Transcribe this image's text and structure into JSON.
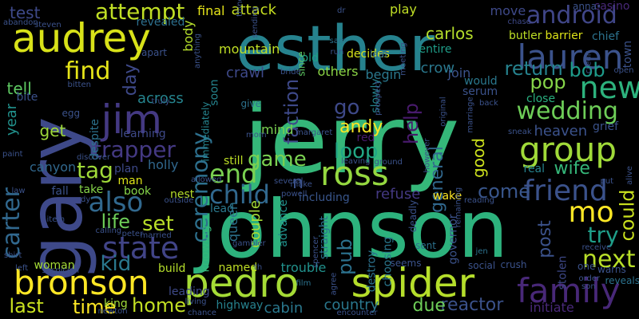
{
  "words": [
    {
      "text": "jerry",
      "color": "#35b779"
    },
    {
      "text": "johnson",
      "color": "#2db27d"
    },
    {
      "text": "esther",
      "color": "#26828e"
    },
    {
      "text": "gary",
      "color": "#3e4989"
    },
    {
      "text": "audrey",
      "color": "#d8e219"
    },
    {
      "text": "pedro",
      "color": "#a5db36"
    },
    {
      "text": "spider",
      "color": "#b5de2b"
    },
    {
      "text": "bronson",
      "color": "#fde725"
    },
    {
      "text": "group",
      "color": "#a0da39"
    },
    {
      "text": "lauren",
      "color": "#3b528b"
    },
    {
      "text": "family",
      "color": "#482878"
    },
    {
      "text": "android",
      "color": "#404688"
    },
    {
      "text": "ross",
      "color": "#95d840"
    },
    {
      "text": "friend",
      "color": "#3b528b"
    },
    {
      "text": "jim",
      "color": "#443983"
    },
    {
      "text": "state",
      "color": "#414487"
    },
    {
      "text": "new",
      "color": "#2db27d"
    },
    {
      "text": "wedding",
      "color": "#6ece58"
    },
    {
      "text": "mo",
      "color": "#fde725"
    },
    {
      "text": "also",
      "color": "#31688e"
    },
    {
      "text": "attempt",
      "color": "#c0df25"
    },
    {
      "text": "carter",
      "color": "#31688e"
    },
    {
      "text": "ceremony",
      "color": "#2d708e"
    },
    {
      "text": "trapper",
      "color": "#443983"
    },
    {
      "text": "find",
      "color": "#e5e419"
    },
    {
      "text": "next",
      "color": "#b8de29"
    },
    {
      "text": "end",
      "color": "#7ad151"
    },
    {
      "text": "child",
      "color": "#31688e"
    },
    {
      "text": "kid",
      "color": "#2a788e"
    },
    {
      "text": "time",
      "color": "#fde725"
    },
    {
      "text": "home",
      "color": "#c2df23"
    },
    {
      "text": "last",
      "color": "#cae11f"
    },
    {
      "text": "tag",
      "color": "#a0da39"
    },
    {
      "text": "set",
      "color": "#b8de29"
    },
    {
      "text": "life",
      "color": "#6ece58"
    },
    {
      "text": "loop",
      "color": "#22a785"
    },
    {
      "text": "game",
      "color": "#7ad151"
    },
    {
      "text": "go",
      "color": "#3e4989"
    },
    {
      "text": "try",
      "color": "#1f9e89"
    },
    {
      "text": "could",
      "color": "#cae11f"
    },
    {
      "text": "return",
      "color": "#26828e"
    },
    {
      "text": "pop",
      "color": "#86d549"
    },
    {
      "text": "bob",
      "color": "#1e9b8a"
    },
    {
      "text": "come",
      "color": "#39568c"
    },
    {
      "text": "wife",
      "color": "#35b779"
    },
    {
      "text": "post",
      "color": "#3b528b"
    },
    {
      "text": "faction",
      "color": "#3e4989"
    },
    {
      "text": "general",
      "color": "#31688e"
    },
    {
      "text": "good",
      "color": "#cde11d"
    },
    {
      "text": "help",
      "color": "#481a6c"
    },
    {
      "text": "andy",
      "color": "#fde725"
    },
    {
      "text": "pub",
      "color": "#2c728e"
    },
    {
      "text": "reactor",
      "color": "#3b528b"
    },
    {
      "text": "due",
      "color": "#6ece58"
    },
    {
      "text": "country",
      "color": "#2a788e"
    },
    {
      "text": "cabin",
      "color": "#2a788e"
    },
    {
      "text": "year",
      "color": "#21918c"
    },
    {
      "text": "get",
      "color": "#9fda3a"
    },
    {
      "text": "tell",
      "color": "#5ec962"
    },
    {
      "text": "test",
      "color": "#3e4989"
    },
    {
      "text": "day",
      "color": "#3e4989"
    },
    {
      "text": "across",
      "color": "#25848e"
    },
    {
      "text": "final",
      "color": "#e5e419"
    },
    {
      "text": "attack",
      "color": "#c8e020"
    },
    {
      "text": "carlos",
      "color": "#b5de2b"
    },
    {
      "text": "play",
      "color": "#c0df25"
    },
    {
      "text": "move",
      "color": "#3e4989"
    },
    {
      "text": "mountain",
      "color": "#c0df25"
    },
    {
      "text": "crawl",
      "color": "#3e4989"
    },
    {
      "text": "others",
      "color": "#8bd646"
    },
    {
      "text": "begin",
      "color": "#2a788e"
    },
    {
      "text": "join",
      "color": "#3b528b"
    },
    {
      "text": "crow",
      "color": "#2a788e"
    },
    {
      "text": "heaven",
      "color": "#3b528b"
    },
    {
      "text": "close",
      "color": "#29af7f"
    },
    {
      "text": "mind",
      "color": "#7ad151"
    },
    {
      "text": "queen",
      "color": "#2c728e"
    },
    {
      "text": "couple",
      "color": "#a5db36"
    },
    {
      "text": "named",
      "color": "#c0df25"
    },
    {
      "text": "trouble",
      "color": "#21918c"
    },
    {
      "text": "advance",
      "color": "#21918c"
    },
    {
      "text": "destroy",
      "color": "#2c728e"
    },
    {
      "text": "refuse",
      "color": "#443983"
    },
    {
      "text": "wake",
      "color": "#fde725"
    },
    {
      "text": "including",
      "color": "#39568c"
    },
    {
      "text": "butler",
      "color": "#bddf26"
    },
    {
      "text": "barrier",
      "color": "#dde318"
    },
    {
      "text": "chief",
      "color": "#2c728e"
    },
    {
      "text": "town",
      "color": "#3b528b"
    },
    {
      "text": "grief",
      "color": "#3b528b"
    },
    {
      "text": "stolen",
      "color": "#3e4989"
    },
    {
      "text": "initiate",
      "color": "#482878"
    },
    {
      "text": "holly",
      "color": "#31688e"
    },
    {
      "text": "canyon",
      "color": "#31688e"
    },
    {
      "text": "body",
      "color": "#b5de2b"
    },
    {
      "text": "revealed",
      "color": "#2d708e"
    },
    {
      "text": "still",
      "color": "#bddf26"
    },
    {
      "text": "plan",
      "color": "#3e4989"
    },
    {
      "text": "man",
      "color": "#dde318"
    },
    {
      "text": "take",
      "color": "#86d549"
    },
    {
      "text": "book",
      "color": "#86d549"
    },
    {
      "text": "nest",
      "color": "#b5de2b"
    },
    {
      "text": "lead",
      "color": "#2a788e"
    },
    {
      "text": "build",
      "color": "#b5de2b"
    },
    {
      "text": "knowing",
      "color": "#35b779"
    },
    {
      "text": "woman",
      "color": "#a5db36"
    },
    {
      "text": "king",
      "color": "#a0da39"
    },
    {
      "text": "highway",
      "color": "#26828e"
    },
    {
      "text": "leading",
      "color": "#3e4989"
    },
    {
      "text": "despite",
      "color": "#2c728e"
    },
    {
      "text": "learning",
      "color": "#3e4989"
    },
    {
      "text": "immediately",
      "color": "#25848e"
    },
    {
      "text": "soon",
      "color": "#25848e"
    },
    {
      "text": "since",
      "color": "#5ec962"
    },
    {
      "text": "old",
      "color": "#1fa187"
    },
    {
      "text": "decides",
      "color": "#d5e21a"
    },
    {
      "text": "entire",
      "color": "#1f9e89"
    },
    {
      "text": "slowly",
      "color": "#25848e"
    },
    {
      "text": "straight",
      "color": "#2c728e"
    },
    {
      "text": "choosing",
      "color": "#2a788e"
    },
    {
      "text": "deadly",
      "color": "#3b528b"
    },
    {
      "text": "governor",
      "color": "#3b528b"
    },
    {
      "text": "would",
      "color": "#2a788e"
    },
    {
      "text": "real",
      "color": "#26828e"
    },
    {
      "text": "bite",
      "color": "#3b528b"
    },
    {
      "text": "fall",
      "color": "#3b528b"
    },
    {
      "text": "serum",
      "color": "#3b528b"
    },
    {
      "text": "red",
      "color": "#481a6c"
    },
    {
      "text": "leaf",
      "color": "#31688e"
    },
    {
      "text": "casino",
      "color": "#482878"
    },
    {
      "text": "anna",
      "color": "#3b528b"
    },
    {
      "text": "chase",
      "color": "#3e4989"
    },
    {
      "text": "apart",
      "color": "#3b528b"
    },
    {
      "text": "egg",
      "color": "#3b528b"
    },
    {
      "text": "give",
      "color": "#2c728e"
    },
    {
      "text": "sam",
      "color": "#2c728e"
    },
    {
      "text": "run",
      "color": "#3b528b"
    },
    {
      "text": "sent",
      "color": "#2c728e"
    },
    {
      "text": "jen",
      "color": "#2c728e"
    },
    {
      "text": "seems",
      "color": "#3b528b"
    },
    {
      "text": "social",
      "color": "#3b528b"
    },
    {
      "text": "crush",
      "color": "#3b528b"
    },
    {
      "text": "one",
      "color": "#3b528b"
    },
    {
      "text": "warns",
      "color": "#3b528b"
    },
    {
      "text": "reveals",
      "color": "#2c728e"
    },
    {
      "text": "film",
      "color": "#2c728e"
    },
    {
      "text": "living",
      "color": "#3b528b"
    },
    {
      "text": "newton",
      "color": "#3b528b"
    },
    {
      "text": "chance",
      "color": "#3b528b"
    },
    {
      "text": "agree",
      "color": "#3b528b"
    },
    {
      "text": "encounter",
      "color": "#3b528b"
    },
    {
      "text": "item",
      "color": "#3b528b"
    },
    {
      "text": "left",
      "color": "#3b528b"
    },
    {
      "text": "suspicion",
      "color": "#3b528b"
    },
    {
      "text": "shirt",
      "color": "#3b528b"
    },
    {
      "text": "paint",
      "color": "#3b528b"
    },
    {
      "text": "law",
      "color": "#3b528b"
    },
    {
      "text": "calling",
      "color": "#3b528b"
    },
    {
      "text": "peter",
      "color": "#3b528b"
    },
    {
      "text": "married",
      "color": "#3b528b"
    },
    {
      "text": "gambler",
      "color": "#3b528b"
    },
    {
      "text": "spencer",
      "color": "#3b528b"
    },
    {
      "text": "receive",
      "color": "#3b528b"
    },
    {
      "text": "order",
      "color": "#3b528b"
    },
    {
      "text": "son",
      "color": "#3b528b"
    },
    {
      "text": "put",
      "color": "#3b528b"
    },
    {
      "text": "alive",
      "color": "#3b528b"
    },
    {
      "text": "credit",
      "color": "#3b528b"
    },
    {
      "text": "back",
      "color": "#3b528b"
    },
    {
      "text": "marriage",
      "color": "#3b528b"
    },
    {
      "text": "reading",
      "color": "#3b528b"
    },
    {
      "text": "several",
      "color": "#3b528b"
    },
    {
      "text": "powell",
      "color": "#3b528b"
    },
    {
      "text": "leaving",
      "color": "#3b528b"
    },
    {
      "text": "ground",
      "color": "#3b528b"
    },
    {
      "text": "make",
      "color": "#3b528b"
    },
    {
      "text": "allowed",
      "color": "#3b528b"
    },
    {
      "text": "outside",
      "color": "#3b528b"
    },
    {
      "text": "discover",
      "color": "#3b528b"
    },
    {
      "text": "bitten",
      "color": "#3b528b"
    },
    {
      "text": "truly",
      "color": "#3b528b"
    },
    {
      "text": "abandon",
      "color": "#3b528b"
    },
    {
      "text": "steven",
      "color": "#3b528b"
    },
    {
      "text": "thing",
      "color": "#3b528b"
    },
    {
      "text": "sending",
      "color": "#3b528b"
    },
    {
      "text": "anything",
      "color": "#3b528b"
    },
    {
      "text": "bride",
      "color": "#3b528b"
    },
    {
      "text": "meeting",
      "color": "#3b528b"
    },
    {
      "text": "prospect",
      "color": "#3b528b"
    },
    {
      "text": "original",
      "color": "#3b528b"
    },
    {
      "text": "however",
      "color": "#3b528b"
    },
    {
      "text": "remaining",
      "color": "#3b528b"
    },
    {
      "text": "margaret",
      "color": "#3b528b"
    },
    {
      "text": "mom",
      "color": "#3b528b"
    },
    {
      "text": "sneak",
      "color": "#3b528b"
    },
    {
      "text": "open",
      "color": "#3b528b"
    },
    {
      "text": "dr",
      "color": "#3b528b"
    },
    {
      "text": "th",
      "color": "#3b528b"
    },
    {
      "text": "dy",
      "color": "#3b528b"
    },
    {
      "text": "n",
      "color": "#3b528b"
    }
  ]
}
